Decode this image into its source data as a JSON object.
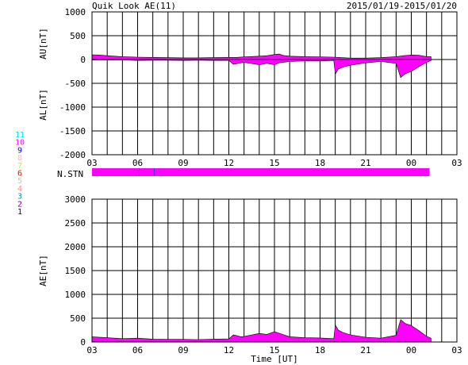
{
  "header": {
    "title": "Quik Look AE(11)",
    "date_range": "2015/01/19-2015/01/20"
  },
  "station_legend": {
    "entries": [
      {
        "label": "11",
        "color": "#00e5e5"
      },
      {
        "label": "10",
        "color": "#ff00ff"
      },
      {
        "label": "9",
        "color": "#0000ff"
      },
      {
        "label": "8",
        "color": "#ffb6c1"
      },
      {
        "label": "7",
        "color": "#e5e500"
      },
      {
        "label": "6",
        "color": "#ff0000"
      },
      {
        "label": "5",
        "color": "#c8c8c8"
      },
      {
        "label": "4",
        "color": "#ff8c8c"
      },
      {
        "label": "3",
        "color": "#00a0a0"
      },
      {
        "label": "2",
        "color": "#8b008b"
      },
      {
        "label": "1",
        "color": "#00008b"
      }
    ]
  },
  "colors": {
    "fill": "#ff00ff",
    "line": "#000000",
    "grid": "#000000"
  },
  "chart_data": [
    {
      "type": "area",
      "ylabel_top": "AU[nT]",
      "ylabel_bottom": "AL[nT]",
      "ylim": [
        -2000,
        1000
      ],
      "yticks": [
        "1000",
        "500",
        "0",
        "-500",
        "-1000",
        "-1500",
        "-2000"
      ],
      "xticks": [
        "03",
        "06",
        "09",
        "12",
        "15",
        "18",
        "21",
        "00",
        "03"
      ],
      "xlim_hours": [
        3,
        27
      ],
      "grid": true,
      "au": [
        [
          3,
          100
        ],
        [
          3.5,
          95
        ],
        [
          4,
          80
        ],
        [
          5,
          60
        ],
        [
          6,
          50
        ],
        [
          7,
          45
        ],
        [
          8,
          40
        ],
        [
          9,
          35
        ],
        [
          10,
          35
        ],
        [
          11,
          40
        ],
        [
          12,
          45
        ],
        [
          12.5,
          45
        ],
        [
          13,
          55
        ],
        [
          14,
          70
        ],
        [
          14.5,
          80
        ],
        [
          15,
          105
        ],
        [
          15.3,
          115
        ],
        [
          15.6,
          85
        ],
        [
          16,
          70
        ],
        [
          17,
          60
        ],
        [
          18,
          55
        ],
        [
          18.9,
          50
        ],
        [
          19.2,
          45
        ],
        [
          20,
          30
        ],
        [
          21,
          30
        ],
        [
          22,
          40
        ],
        [
          23,
          60
        ],
        [
          23.5,
          80
        ],
        [
          24,
          95
        ],
        [
          24.5,
          90
        ],
        [
          25,
          60
        ],
        [
          25.3,
          60
        ]
      ],
      "al": [
        [
          3,
          -10
        ],
        [
          4,
          -10
        ],
        [
          5,
          -10
        ],
        [
          6,
          -20
        ],
        [
          7,
          -15
        ],
        [
          8,
          -15
        ],
        [
          9,
          -20
        ],
        [
          10,
          -15
        ],
        [
          11,
          -20
        ],
        [
          12,
          -20
        ],
        [
          12.3,
          -100
        ],
        [
          12.8,
          -70
        ],
        [
          13,
          -60
        ],
        [
          14,
          -110
        ],
        [
          14.5,
          -80
        ],
        [
          15,
          -110
        ],
        [
          15.3,
          -70
        ],
        [
          16,
          -40
        ],
        [
          17,
          -30
        ],
        [
          18,
          -30
        ],
        [
          18.9,
          -20
        ],
        [
          19,
          -310
        ],
        [
          19.2,
          -200
        ],
        [
          19.5,
          -160
        ],
        [
          20,
          -120
        ],
        [
          21,
          -70
        ],
        [
          22,
          -40
        ],
        [
          23,
          -80
        ],
        [
          23.3,
          -380
        ],
        [
          23.6,
          -300
        ],
        [
          24,
          -250
        ],
        [
          24.5,
          -150
        ],
        [
          25,
          -60
        ],
        [
          25.3,
          -20
        ]
      ]
    },
    {
      "type": "area",
      "ylabel": "AE[nT]",
      "xlabel": "Time [UT]",
      "ylim": [
        0,
        3000
      ],
      "yticks": [
        "3000",
        "2500",
        "2000",
        "1500",
        "1000",
        "500",
        "0"
      ],
      "xticks": [
        "03",
        "06",
        "09",
        "12",
        "15",
        "18",
        "21",
        "00",
        "03"
      ],
      "xlim_hours": [
        3,
        27
      ],
      "grid": true,
      "ae": [
        [
          3,
          110
        ],
        [
          4,
          90
        ],
        [
          5,
          70
        ],
        [
          6,
          80
        ],
        [
          7,
          60
        ],
        [
          8,
          55
        ],
        [
          9,
          55
        ],
        [
          10,
          50
        ],
        [
          11,
          60
        ],
        [
          12,
          65
        ],
        [
          12.3,
          150
        ],
        [
          12.8,
          110
        ],
        [
          13,
          115
        ],
        [
          14,
          180
        ],
        [
          14.5,
          160
        ],
        [
          15,
          215
        ],
        [
          15.3,
          185
        ],
        [
          16,
          110
        ],
        [
          17,
          90
        ],
        [
          18,
          85
        ],
        [
          18.9,
          70
        ],
        [
          19,
          360
        ],
        [
          19.2,
          250
        ],
        [
          19.5,
          200
        ],
        [
          20,
          150
        ],
        [
          21,
          100
        ],
        [
          22,
          80
        ],
        [
          23,
          140
        ],
        [
          23.3,
          470
        ],
        [
          23.6,
          390
        ],
        [
          24,
          345
        ],
        [
          24.5,
          240
        ],
        [
          25,
          120
        ],
        [
          25.3,
          80
        ]
      ]
    }
  ],
  "n_stn": {
    "label": "N.STN",
    "xlim_hours": [
      3,
      27
    ],
    "end_hour": 25.2,
    "segments": [
      {
        "from": 3,
        "to": 6,
        "count": 10
      },
      {
        "from": 6,
        "to": 7.1,
        "count": 10
      },
      {
        "from": 7.1,
        "to": 25.2,
        "count": 10
      }
    ],
    "markers": [
      6.1,
      7.1
    ]
  }
}
